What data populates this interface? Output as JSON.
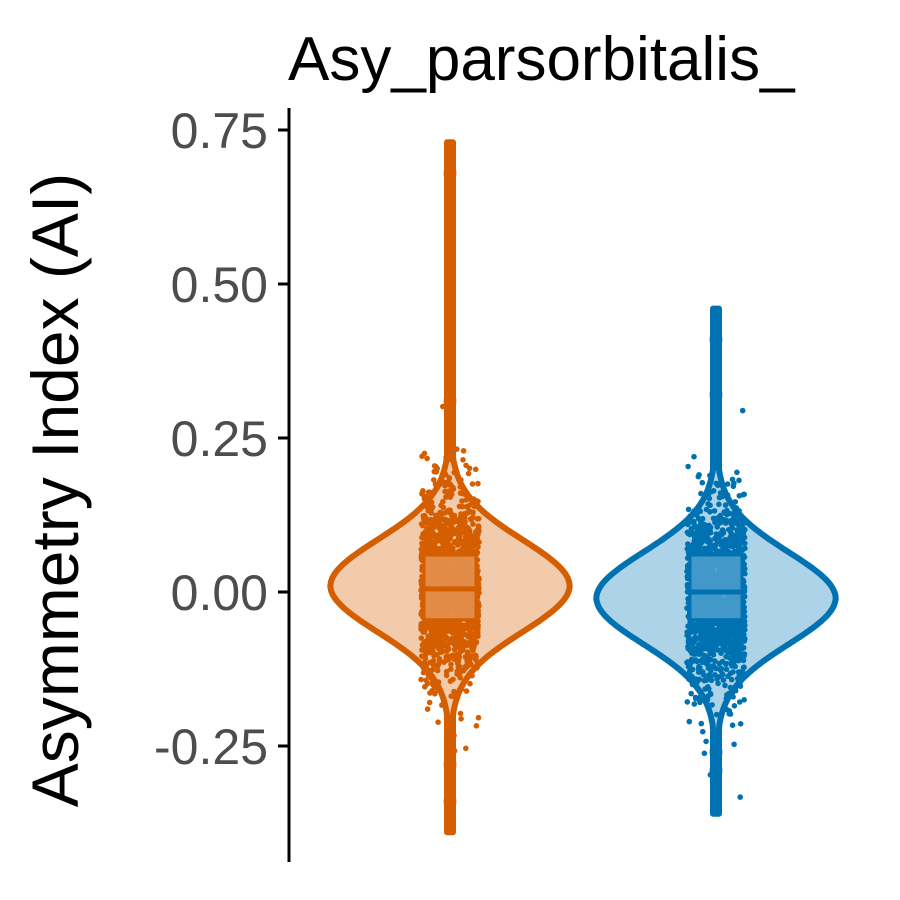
{
  "chart_data": {
    "type": "violin",
    "title": "Asy_parsorbitalis_",
    "xlabel": "",
    "ylabel": "Asymmetry Index (AI)",
    "ylim": [
      -0.4,
      0.78
    ],
    "yticks": [
      -0.25,
      0.0,
      0.25,
      0.5,
      0.75
    ],
    "ytick_labels": [
      "-0.25",
      "0.00",
      "0.25",
      "0.50",
      "0.75"
    ],
    "grid": false,
    "series": [
      {
        "color": "#D55E00",
        "fill": "#F2CBAD",
        "box_fill": "#E39352",
        "min": -0.39,
        "max": 0.73,
        "q1": -0.045,
        "median": 0.005,
        "q3": 0.06,
        "density_peak": 0.01,
        "outliers": [
          0.68,
          0.31,
          -0.28,
          -0.34
        ]
      },
      {
        "color": "#0072B2",
        "fill": "#ADD3E8",
        "box_fill": "#4E9FCB",
        "min": -0.36,
        "max": 0.46,
        "q1": -0.045,
        "median": 0.0,
        "q3": 0.06,
        "density_peak": -0.01,
        "outliers": [
          0.41,
          0.32,
          -0.26,
          -0.29
        ]
      }
    ]
  }
}
